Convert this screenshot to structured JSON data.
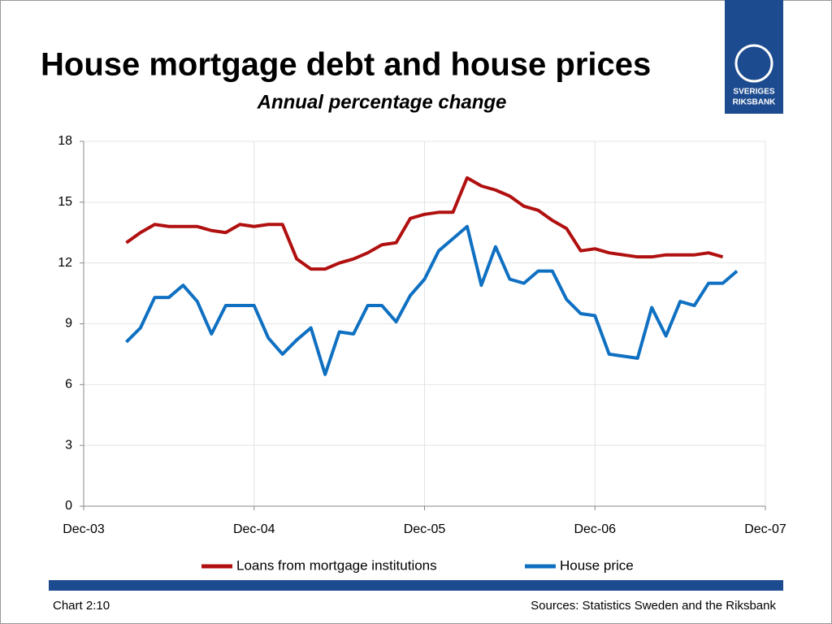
{
  "chart_data": {
    "type": "line",
    "title": "House mortgage debt and house prices",
    "subtitle": "Annual percentage change",
    "x": [
      "Mar-04",
      "Apr-04",
      "May-04",
      "Jun-04",
      "Jul-04",
      "Aug-04",
      "Sep-04",
      "Oct-04",
      "Nov-04",
      "Dec-04",
      "Jan-05",
      "Feb-05",
      "Mar-05",
      "Apr-05",
      "May-05",
      "Jun-05",
      "Jul-05",
      "Aug-05",
      "Sep-05",
      "Oct-05",
      "Nov-05",
      "Dec-05",
      "Jan-06",
      "Feb-06",
      "Mar-06",
      "Apr-06",
      "May-06",
      "Jun-06",
      "Jul-06",
      "Aug-06",
      "Sep-06",
      "Oct-06",
      "Nov-06",
      "Dec-06",
      "Jan-07",
      "Feb-07",
      "Mar-07",
      "Apr-07",
      "May-07",
      "Jun-07",
      "Jul-07",
      "Aug-07",
      "Sep-07",
      "Oct-07"
    ],
    "series": [
      {
        "name": "Loans from mortgage institutions",
        "color": "#b0100f",
        "values": [
          13.0,
          13.5,
          13.9,
          13.8,
          13.8,
          13.8,
          13.6,
          13.5,
          13.9,
          13.8,
          13.9,
          13.9,
          12.2,
          11.7,
          11.7,
          12.0,
          12.2,
          12.5,
          12.9,
          13.0,
          14.2,
          14.4,
          14.5,
          14.5,
          16.2,
          15.8,
          15.6,
          15.3,
          14.8,
          14.6,
          14.1,
          13.7,
          12.6,
          12.7,
          12.5,
          12.4,
          12.3,
          12.3,
          12.4,
          12.4,
          12.4,
          12.5,
          12.3,
          null
        ]
      },
      {
        "name": "House price",
        "color": "#0f70c2",
        "values": [
          8.1,
          8.8,
          10.3,
          10.3,
          10.9,
          10.1,
          8.5,
          9.9,
          9.9,
          9.9,
          8.3,
          7.5,
          8.2,
          8.8,
          6.5,
          8.6,
          8.5,
          9.9,
          9.9,
          9.1,
          10.4,
          11.2,
          12.6,
          13.2,
          13.8,
          10.9,
          12.8,
          11.2,
          11.0,
          11.6,
          11.6,
          10.2,
          9.5,
          9.4,
          7.5,
          7.4,
          7.3,
          9.8,
          8.4,
          10.1,
          9.9,
          11.0,
          11.0,
          11.6
        ]
      }
    ],
    "xlim": [
      "Dec-03",
      "Dec-07"
    ],
    "xticks": [
      "Dec-03",
      "Dec-04",
      "Dec-05",
      "Dec-06",
      "Dec-07"
    ],
    "ylim": [
      0,
      18
    ],
    "yticks": [
      0,
      3,
      6,
      9,
      12,
      15,
      18
    ],
    "grid": true,
    "legend": "bottom"
  },
  "logo": [
    "SVERIGES",
    "RIKSBANK"
  ],
  "footer": {
    "left": "Chart 2:10",
    "right": "Sources: Statistics Sweden and the Riksbank"
  }
}
